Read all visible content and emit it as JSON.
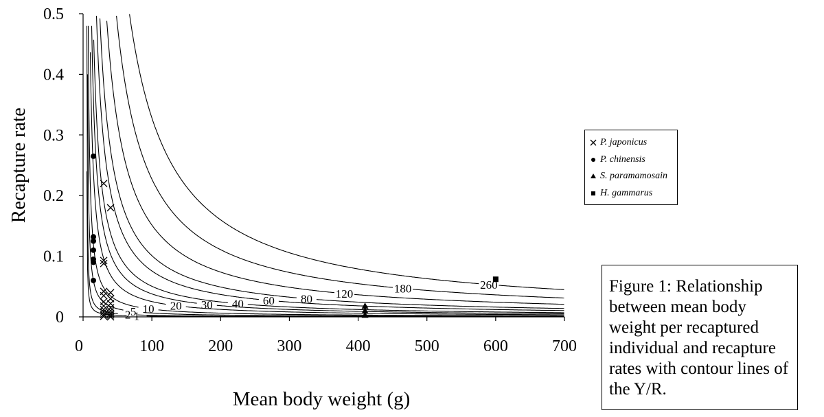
{
  "chart_data": {
    "type": "scatter",
    "title": "",
    "xlabel": "Mean body weight (g)",
    "ylabel": "Recapture rate",
    "xlim": [
      0,
      700
    ],
    "ylim": [
      0,
      0.5
    ],
    "x_ticks": [
      "0",
      "100",
      "200",
      "300",
      "400",
      "500",
      "600",
      "700"
    ],
    "y_ticks": [
      "0",
      "0.1",
      "0.2",
      "0.3",
      "0.4",
      "0.5"
    ],
    "grid": false,
    "legend_position": "right",
    "contours": [
      {
        "label": "1",
        "value": 1
      },
      {
        "label": "2",
        "value": 2
      },
      {
        "label": "5",
        "value": 5
      },
      {
        "label": "10",
        "value": 10
      },
      {
        "label": "20",
        "value": 20
      },
      {
        "label": "30",
        "value": 30
      },
      {
        "label": "40",
        "value": 40
      },
      {
        "label": "60",
        "value": 60
      },
      {
        "label": "80",
        "value": 80
      },
      {
        "label": "120",
        "value": 120
      },
      {
        "label": "180",
        "value": 180
      },
      {
        "label": "260",
        "value": 260
      }
    ],
    "series": [
      {
        "name": "P. japonicus",
        "marker": "x",
        "points": [
          [
            30,
            0.22
          ],
          [
            40,
            0.18
          ],
          [
            30,
            0.093
          ],
          [
            30,
            0.088
          ],
          [
            30,
            0.042
          ],
          [
            40,
            0.04
          ],
          [
            30,
            0.035
          ],
          [
            40,
            0.03
          ],
          [
            30,
            0.025
          ],
          [
            40,
            0.022
          ],
          [
            30,
            0.018
          ],
          [
            40,
            0.015
          ],
          [
            30,
            0.012
          ],
          [
            40,
            0.01
          ],
          [
            30,
            0.008
          ],
          [
            40,
            0.006
          ],
          [
            30,
            0.004
          ],
          [
            40,
            0.003
          ],
          [
            30,
            0.001
          ],
          [
            40,
            0.0
          ]
        ]
      },
      {
        "name": "P. chinensis",
        "marker": "circle",
        "points": [
          [
            15,
            0.265
          ],
          [
            15,
            0.132
          ],
          [
            15,
            0.125
          ],
          [
            15,
            0.11
          ],
          [
            15,
            0.095
          ],
          [
            15,
            0.09
          ],
          [
            15,
            0.06
          ]
        ]
      },
      {
        "name": "S. paramamosain",
        "marker": "triangle",
        "points": [
          [
            410,
            0.018
          ],
          [
            410,
            0.01
          ],
          [
            410,
            0.003
          ]
        ]
      },
      {
        "name": "H. gammarus",
        "marker": "square",
        "points": [
          [
            600,
            0.062
          ]
        ]
      }
    ]
  },
  "caption": "Figure 1: Relationship between mean body weight per recaptured individual and recapture rates with contour lines of the Y/R."
}
